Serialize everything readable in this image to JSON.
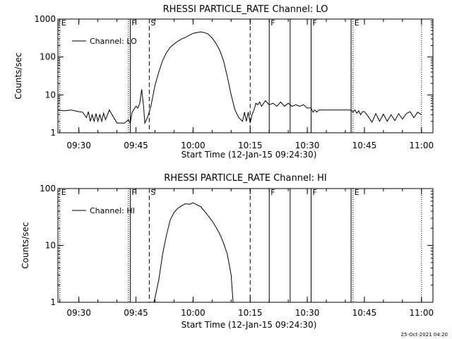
{
  "footer": {
    "date_stamp": "25-Oct-2021 04:20"
  },
  "chart_data": [
    {
      "type": "line",
      "title": "RHESSI PARTICLE_RATE Channel: LO",
      "xlabel": "Start Time (12-Jan-15 09:24:30)",
      "ylabel": "Counts/sec",
      "yscale": "log",
      "xlim": [
        "09:24:30",
        "11:03:00"
      ],
      "ylim": [
        1,
        1000
      ],
      "x_ticks": [
        "09:30",
        "09:45",
        "10:00",
        "10:15",
        "10:30",
        "10:45",
        "11:00"
      ],
      "y_ticks": [
        "1",
        "10",
        "100",
        "1000"
      ],
      "legend": {
        "placement": "top-left",
        "entries": [
          "Channel: LO"
        ]
      },
      "grid": false,
      "series": [
        {
          "name": "Channel: LO",
          "x": [
            "09:24:30",
            "09:26:00",
            "09:28:00",
            "09:30:00",
            "09:31:00",
            "09:32:00",
            "09:32:30",
            "09:33:00",
            "09:33:30",
            "09:34:00",
            "09:34:30",
            "09:35:00",
            "09:35:30",
            "09:36:00",
            "09:36:30",
            "09:37:00",
            "09:38:00",
            "09:40:00",
            "09:42:00",
            "09:43:00",
            "09:43:30",
            "09:44:00",
            "09:45:00",
            "09:45:30",
            "09:46:00",
            "09:46:30",
            "09:47:00",
            "09:47:20",
            "09:48:00",
            "09:48:30",
            "09:49:00",
            "09:49:30",
            "09:50:00",
            "09:51:00",
            "09:52:00",
            "09:53:00",
            "09:54:00",
            "09:55:00",
            "09:56:00",
            "09:57:00",
            "09:58:00",
            "10:00:00",
            "10:02:00",
            "10:03:00",
            "10:04:00",
            "10:05:00",
            "10:06:00",
            "10:07:00",
            "10:08:00",
            "10:09:00",
            "10:10:00",
            "10:11:00",
            "10:12:00",
            "10:13:00",
            "10:13:30",
            "10:14:00",
            "10:14:30",
            "10:15:00",
            "10:15:30",
            "10:16:00",
            "10:16:30",
            "10:17:00",
            "10:17:30",
            "10:18:00",
            "10:19:00",
            "10:20:00",
            "10:21:00",
            "10:22:00",
            "10:23:00",
            "10:24:00",
            "10:25:00",
            "10:26:00",
            "10:27:00",
            "10:28:00",
            "10:29:00",
            "10:30:00",
            "10:31:00",
            "10:31:30",
            "10:32:00",
            "10:32:30",
            "10:33:00",
            "10:34:00",
            "10:36:00",
            "10:38:00",
            "10:40:00",
            "10:41:30",
            "10:42:00",
            "10:42:30",
            "10:43:00",
            "10:43:30",
            "10:44:00",
            "10:44:30",
            "10:45:00",
            "10:46:00",
            "10:47:00",
            "10:48:00",
            "10:49:00",
            "10:50:00",
            "10:51:00",
            "10:52:00",
            "10:53:00",
            "10:54:00",
            "10:55:00",
            "10:56:00",
            "10:57:00",
            "10:58:00",
            "10:59:00",
            "11:00:00"
          ],
          "y": [
            4,
            3.8,
            4,
            3.6,
            3.5,
            2.5,
            3.6,
            2.0,
            3.0,
            2.0,
            3.2,
            2.0,
            3.0,
            2.0,
            3.3,
            2.2,
            4.0,
            1.8,
            1.8,
            2.2,
            1.8,
            3.5,
            5,
            4.5,
            6,
            14,
            5,
            1.8,
            2.5,
            3.5,
            5.5,
            10,
            18,
            40,
            80,
            130,
            180,
            220,
            260,
            300,
            330,
            420,
            460,
            440,
            400,
            320,
            230,
            150,
            80,
            30,
            10,
            4,
            2.5,
            2,
            3.5,
            2,
            3.5,
            1.8,
            3,
            4,
            6,
            5.5,
            6.5,
            5,
            7,
            5.5,
            6,
            5,
            6.5,
            5,
            6,
            5,
            5.5,
            5,
            5.5,
            4.5,
            4.5,
            3.5,
            4.0,
            3.5,
            4,
            4,
            4,
            4,
            4,
            4,
            3.5,
            4,
            3.3,
            3.8,
            3,
            3.6,
            3.6,
            2.7,
            1.9,
            3.2,
            2.0,
            3.1,
            2.0,
            3.0,
            2.1,
            3.2,
            2.3,
            3.2,
            3.6,
            2.5,
            3.5,
            3.0
          ]
        }
      ],
      "markers": [
        {
          "time": "09:25:00",
          "label": "E",
          "style": "dotted"
        },
        {
          "time": "09:43:00",
          "label": "",
          "style": "dotted"
        },
        {
          "time": "09:43:30",
          "label": "F",
          "style": "solid"
        },
        {
          "time": "09:48:30",
          "label": "S",
          "style": "dashed"
        },
        {
          "time": "10:15:00",
          "label": "",
          "style": "dashed"
        },
        {
          "time": "10:20:00",
          "label": "F",
          "style": "solid"
        },
        {
          "time": "10:25:30",
          "label": "",
          "style": "solid"
        },
        {
          "time": "10:31:00",
          "label": "F",
          "style": "solid"
        },
        {
          "time": "10:41:30",
          "label": "",
          "style": "solid"
        },
        {
          "time": "10:42:00",
          "label": "E",
          "style": "dotted"
        },
        {
          "time": "11:00:00",
          "label": "",
          "style": "dotted"
        }
      ]
    },
    {
      "type": "line",
      "title": "RHESSI PARTICLE_RATE Channel: HI",
      "xlabel": "Start Time (12-Jan-15 09:24:30)",
      "ylabel": "Counts/sec",
      "yscale": "log",
      "xlim": [
        "09:24:30",
        "11:03:00"
      ],
      "ylim": [
        1,
        100
      ],
      "x_ticks": [
        "09:30",
        "09:45",
        "10:00",
        "10:15",
        "10:30",
        "10:45",
        "11:00"
      ],
      "y_ticks": [
        "1",
        "10",
        "100"
      ],
      "legend": {
        "placement": "top-left",
        "entries": [
          "Channel: HI"
        ]
      },
      "grid": false,
      "series": [
        {
          "name": "Channel: HI",
          "x": [
            "09:49:40",
            "09:50:00",
            "09:51:00",
            "09:52:00",
            "09:53:00",
            "09:54:00",
            "09:55:00",
            "09:56:00",
            "09:57:00",
            "09:58:00",
            "09:59:00",
            "10:00:00",
            "10:01:00",
            "10:02:00",
            "10:03:00",
            "10:04:00",
            "10:05:00",
            "10:06:00",
            "10:07:00",
            "10:08:00",
            "10:09:00",
            "10:10:00",
            "10:10:30"
          ],
          "y": [
            1.0,
            1.2,
            2.5,
            7,
            15,
            28,
            38,
            45,
            50,
            54,
            53,
            56,
            52,
            48,
            40,
            33,
            27,
            21,
            16,
            11,
            7,
            3,
            1.0
          ]
        }
      ],
      "markers": [
        {
          "time": "09:25:00",
          "label": "E",
          "style": "dotted"
        },
        {
          "time": "09:43:00",
          "label": "",
          "style": "dotted"
        },
        {
          "time": "09:43:30",
          "label": "F",
          "style": "solid"
        },
        {
          "time": "09:48:30",
          "label": "S",
          "style": "dashed"
        },
        {
          "time": "10:15:00",
          "label": "",
          "style": "dashed"
        },
        {
          "time": "10:20:00",
          "label": "F",
          "style": "solid"
        },
        {
          "time": "10:25:30",
          "label": "",
          "style": "solid"
        },
        {
          "time": "10:31:00",
          "label": "F",
          "style": "solid"
        },
        {
          "time": "10:41:30",
          "label": "",
          "style": "solid"
        },
        {
          "time": "10:42:00",
          "label": "E",
          "style": "dotted"
        },
        {
          "time": "11:00:00",
          "label": "",
          "style": "dotted"
        }
      ]
    }
  ]
}
